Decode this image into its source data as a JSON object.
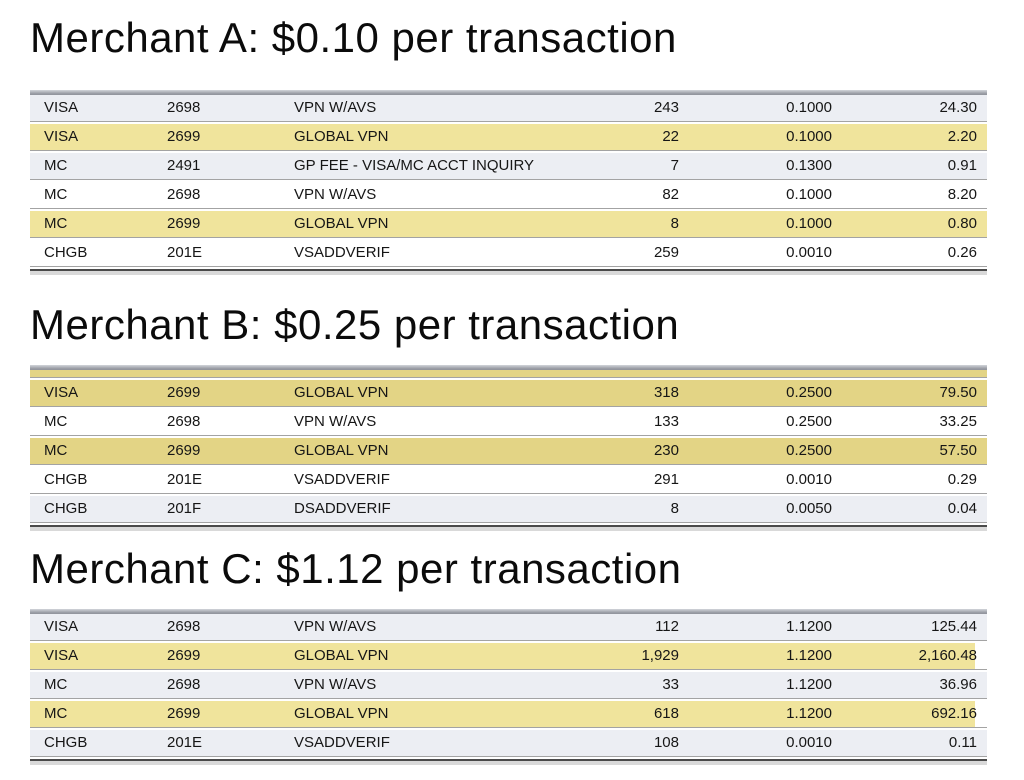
{
  "colors": {
    "page_background": "#ffffff",
    "stripe_row": "#ECEEF3",
    "white_row": "#FFFFFF",
    "highlight_yellow_light": "#F0E49C",
    "highlight_yellow_dark": "#E3D485",
    "row_divider": "#a3a3a3",
    "table_top_bar": "#9a9da5",
    "table_bottom_line": "#4a4a4a"
  },
  "sections": [
    {
      "title": "Merchant A: $0.10 per transaction",
      "highlight": "#F0E49C",
      "partial_top_row": false,
      "highlight_inset_right": 0,
      "rows": [
        {
          "card": "VISA",
          "code": "2698",
          "description": "VPN W/AVS",
          "count": "243",
          "rate": "0.1000",
          "amount": "24.30",
          "bg": "gray"
        },
        {
          "card": "VISA",
          "code": "2699",
          "description": "GLOBAL VPN",
          "count": "22",
          "rate": "0.1000",
          "amount": "2.20",
          "bg": "yellow"
        },
        {
          "card": "MC",
          "code": "2491",
          "description": "GP FEE - VISA/MC ACCT INQUIRY",
          "count": "7",
          "rate": "0.1300",
          "amount": "0.91",
          "bg": "gray"
        },
        {
          "card": "MC",
          "code": "2698",
          "description": "VPN W/AVS",
          "count": "82",
          "rate": "0.1000",
          "amount": "8.20",
          "bg": "white"
        },
        {
          "card": "MC",
          "code": "2699",
          "description": "GLOBAL VPN",
          "count": "8",
          "rate": "0.1000",
          "amount": "0.80",
          "bg": "yellow"
        },
        {
          "card": "CHGB",
          "code": "201E",
          "description": "VSADDVERIF",
          "count": "259",
          "rate": "0.0010",
          "amount": "0.26",
          "bg": "white"
        }
      ]
    },
    {
      "title": "Merchant B: $0.25 per transaction",
      "highlight": "#E3D485",
      "partial_top_row": true,
      "highlight_inset_right": 0,
      "rows": [
        {
          "card": "VISA",
          "code": "2699",
          "description": "GLOBAL VPN",
          "count": "318",
          "rate": "0.2500",
          "amount": "79.50",
          "bg": "yellow"
        },
        {
          "card": "MC",
          "code": "2698",
          "description": "VPN W/AVS",
          "count": "133",
          "rate": "0.2500",
          "amount": "33.25",
          "bg": "white"
        },
        {
          "card": "MC",
          "code": "2699",
          "description": "GLOBAL VPN",
          "count": "230",
          "rate": "0.2500",
          "amount": "57.50",
          "bg": "yellow"
        },
        {
          "card": "CHGB",
          "code": "201E",
          "description": "VSADDVERIF",
          "count": "291",
          "rate": "0.0010",
          "amount": "0.29",
          "bg": "white"
        },
        {
          "card": "CHGB",
          "code": "201F",
          "description": "DSADDVERIF",
          "count": "8",
          "rate": "0.0050",
          "amount": "0.04",
          "bg": "gray"
        }
      ]
    },
    {
      "title": "Merchant C: $1.12 per transaction",
      "highlight": "#F0E49C",
      "partial_top_row": false,
      "highlight_inset_right": 12,
      "rows": [
        {
          "card": "VISA",
          "code": "2698",
          "description": "VPN W/AVS",
          "count": "112",
          "rate": "1.1200",
          "amount": "125.44",
          "bg": "gray"
        },
        {
          "card": "VISA",
          "code": "2699",
          "description": "GLOBAL VPN",
          "count": "1,929",
          "rate": "1.1200",
          "amount": "2,160.48",
          "bg": "yellow"
        },
        {
          "card": "MC",
          "code": "2698",
          "description": "VPN W/AVS",
          "count": "33",
          "rate": "1.1200",
          "amount": "36.96",
          "bg": "gray"
        },
        {
          "card": "MC",
          "code": "2699",
          "description": "GLOBAL VPN",
          "count": "618",
          "rate": "1.1200",
          "amount": "692.16",
          "bg": "yellow"
        },
        {
          "card": "CHGB",
          "code": "201E",
          "description": "VSADDVERIF",
          "count": "108",
          "rate": "0.0010",
          "amount": "0.11",
          "bg": "gray"
        }
      ]
    }
  ]
}
